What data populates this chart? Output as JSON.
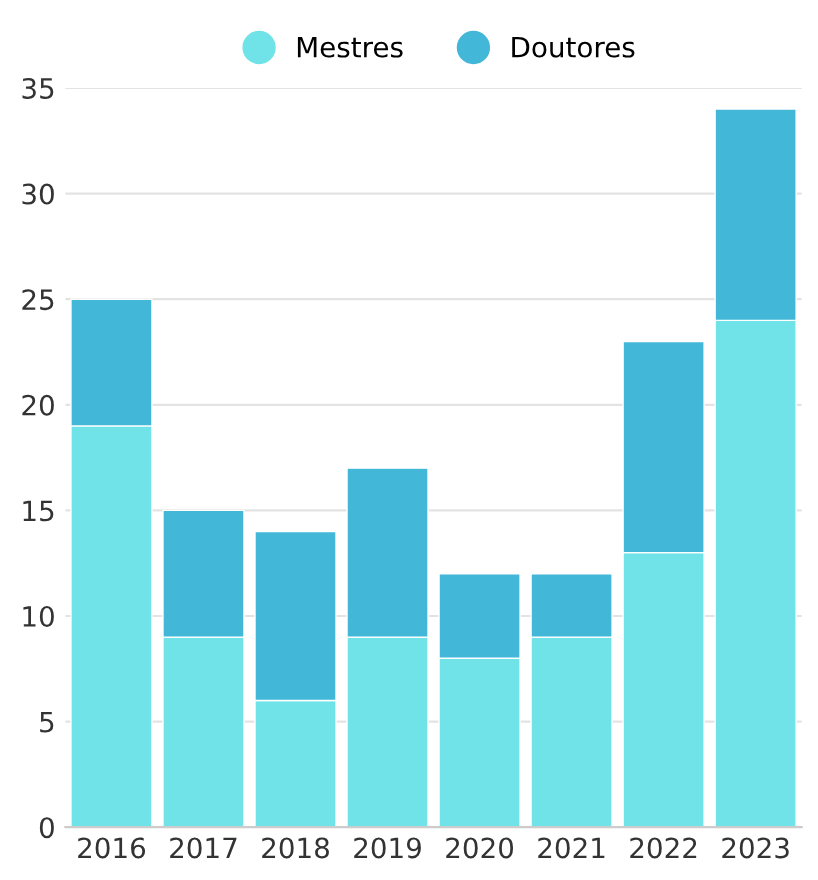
{
  "chart_data": {
    "type": "bar",
    "stacked": true,
    "categories": [
      "2016",
      "2017",
      "2018",
      "2019",
      "2020",
      "2021",
      "2022",
      "2023"
    ],
    "series": [
      {
        "name": "Mestres",
        "color": "#6fe3e8",
        "values": [
          19,
          9,
          6,
          9,
          8,
          9,
          13,
          24
        ]
      },
      {
        "name": "Doutores",
        "color": "#43b7d8",
        "values": [
          6,
          6,
          8,
          8,
          4,
          3,
          10,
          10
        ]
      }
    ],
    "ylim": [
      0,
      35
    ],
    "yticks": [
      0,
      5,
      10,
      15,
      20,
      25,
      30,
      35
    ],
    "grid": "y",
    "legend": "top"
  }
}
